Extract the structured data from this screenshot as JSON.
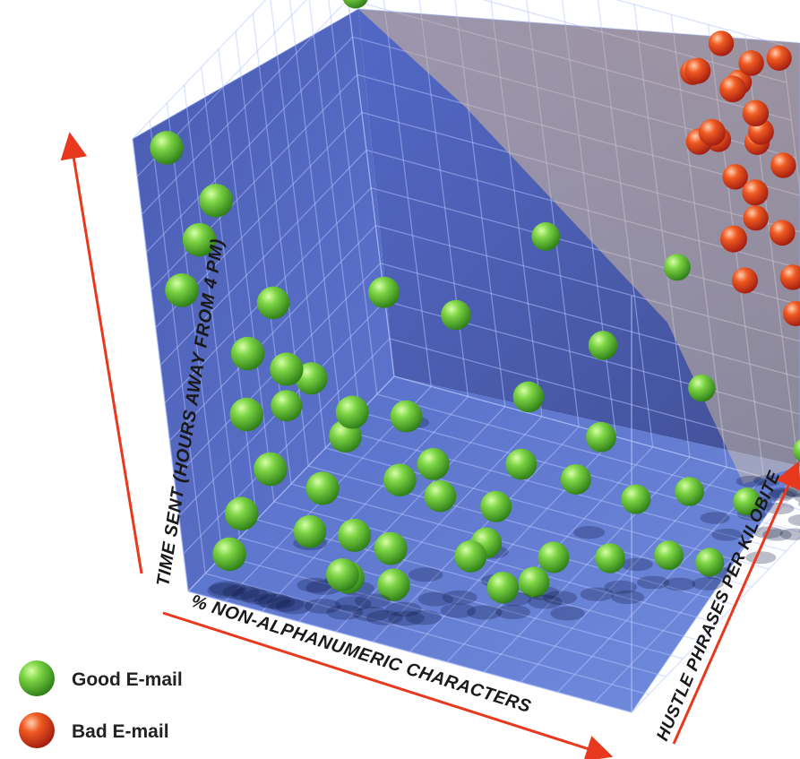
{
  "chart_data": {
    "type": "scatter",
    "dimensions": 3,
    "title": "",
    "axes": {
      "x_label": "% NON-ALPHANUMERIC CHARACTERS",
      "y_label": "TIME SENT (HOURS AWAY FROM 4 PM)",
      "z_label": "HUSTLE PHRASES PER KILOBITE"
    },
    "legend_placement": "bottom-left",
    "grid": true,
    "decision_plane": true,
    "series": [
      {
        "name": "Good E-mail",
        "color": "#52b52e",
        "points": [
          [
            0.05,
            0.97,
            0.05
          ],
          [
            0.15,
            0.88,
            0.05
          ],
          [
            0.1,
            0.78,
            0.05
          ],
          [
            0.05,
            0.66,
            0.04
          ],
          [
            0.18,
            0.55,
            0.05
          ],
          [
            0.16,
            0.41,
            0.05
          ],
          [
            0.25,
            0.52,
            0.08
          ],
          [
            0.2,
            0.3,
            0.05
          ],
          [
            0.12,
            0.18,
            0.05
          ],
          [
            0.08,
            0.08,
            0.05
          ],
          [
            0.38,
            0.45,
            0.1
          ],
          [
            0.3,
            0.27,
            0.08
          ],
          [
            0.35,
            0.17,
            0.1
          ],
          [
            0.3,
            0.06,
            0.12
          ],
          [
            0.45,
            0.3,
            0.14
          ],
          [
            0.42,
            0.15,
            0.12
          ],
          [
            0.4,
            0.05,
            0.15
          ],
          [
            0.5,
            0.32,
            0.2
          ],
          [
            0.55,
            0.12,
            0.22
          ],
          [
            0.48,
            0.22,
            0.25
          ],
          [
            0.6,
            0.05,
            0.25
          ],
          [
            0.58,
            0.2,
            0.3
          ],
          [
            0.64,
            0.3,
            0.32
          ],
          [
            0.7,
            0.12,
            0.3
          ],
          [
            0.62,
            0.02,
            0.35
          ],
          [
            0.72,
            0.25,
            0.4
          ],
          [
            0.78,
            0.35,
            0.42
          ],
          [
            0.75,
            0.06,
            0.45
          ],
          [
            0.8,
            0.18,
            0.5
          ],
          [
            0.85,
            0.06,
            0.52
          ],
          [
            0.9,
            0.2,
            0.55
          ],
          [
            0.22,
            0.12,
            0.15
          ],
          [
            0.28,
            0.02,
            0.18
          ],
          [
            0.33,
            0.36,
            0.15
          ],
          [
            0.44,
            0.4,
            0.22
          ],
          [
            0.52,
            0.08,
            0.35
          ],
          [
            0.66,
            0.44,
            0.35
          ],
          [
            0.2,
            0.62,
            0.15
          ],
          [
            0.38,
            0.62,
            0.3
          ],
          [
            0.9,
            0.02,
            0.6
          ],
          [
            0.95,
            0.12,
            0.7
          ],
          [
            0.24,
            0.44,
            0.2
          ],
          [
            0.6,
            0.65,
            0.62
          ],
          [
            0.46,
            0.52,
            0.45
          ],
          [
            0.12,
            0.3,
            0.3
          ],
          [
            0.74,
            0.48,
            0.55
          ],
          [
            0.85,
            0.32,
            0.75
          ],
          [
            0.1,
            0.94,
            0.85
          ],
          [
            0.95,
            0.1,
            0.98
          ],
          [
            0.8,
            0.55,
            0.8
          ]
        ]
      },
      {
        "name": "Bad E-mail",
        "color": "#e23020",
        "points": [
          [
            0.9,
            0.9,
            0.98
          ],
          [
            0.95,
            0.97,
            0.95
          ],
          [
            0.98,
            0.85,
            0.9
          ],
          [
            0.93,
            0.78,
            0.97
          ],
          [
            1.0,
            0.92,
            0.85
          ],
          [
            0.88,
            0.7,
            0.95
          ],
          [
            0.96,
            0.72,
            0.88
          ],
          [
            0.99,
            0.62,
            0.92
          ],
          [
            0.85,
            0.95,
            0.9
          ],
          [
            0.92,
            0.88,
            0.8
          ],
          [
            0.97,
            0.98,
            0.82
          ],
          [
            0.9,
            0.6,
            0.98
          ],
          [
            0.86,
            0.82,
            0.85
          ],
          [
            0.99,
            0.75,
            0.96
          ],
          [
            0.8,
            0.9,
            0.97
          ],
          [
            0.94,
            0.65,
            0.8
          ],
          [
            0.98,
            0.5,
            0.96
          ],
          [
            0.88,
            0.99,
            0.96
          ],
          [
            0.83,
            0.75,
            0.99
          ],
          [
            1.0,
            0.98,
            0.98
          ],
          [
            0.96,
            0.4,
            0.99
          ],
          [
            0.9,
            0.5,
            0.9
          ]
        ]
      }
    ]
  }
}
